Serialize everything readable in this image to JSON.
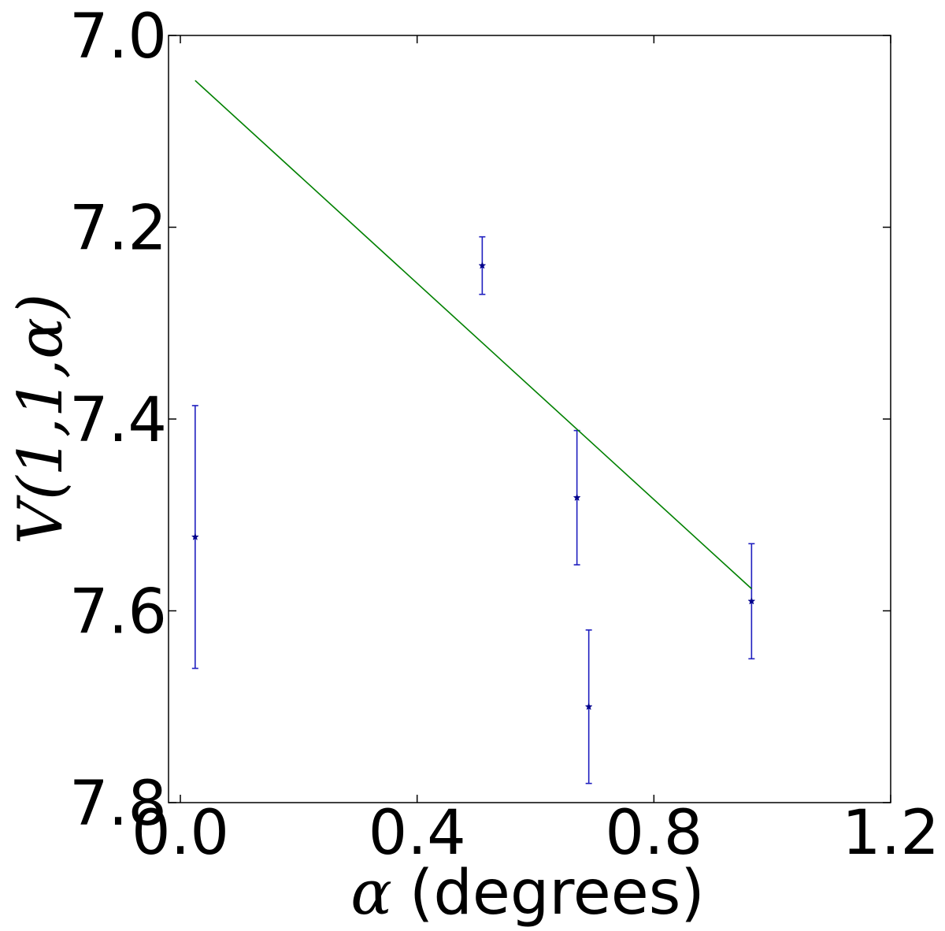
{
  "chart_data": {
    "type": "scatter",
    "title": "",
    "xlabel": {
      "symbol": "α",
      "text": "(degrees)"
    },
    "ylabel": {
      "text": "V(1,1,α)"
    },
    "xlim": [
      -0.02,
      1.2
    ],
    "ylim": [
      7.8,
      7.0
    ],
    "y_inverted": true,
    "xticks": [
      0.0,
      0.4,
      0.8,
      1.2
    ],
    "xtick_labels": [
      "0.0",
      "0.4",
      "0.8",
      "1.2"
    ],
    "yticks": [
      7.0,
      7.2,
      7.4,
      7.6,
      7.8
    ],
    "ytick_labels": [
      "7.0",
      "7.2",
      "7.4",
      "7.6",
      "7.8"
    ],
    "grid": false,
    "legend": "none",
    "series": [
      {
        "kind": "errorbar",
        "marker": "star",
        "color": "#00008b",
        "errcolor": "#1f1fbf",
        "points": [
          {
            "x": 0.025,
            "y": 7.523,
            "yerr": 0.137
          },
          {
            "x": 0.51,
            "y": 7.24,
            "yerr": 0.03
          },
          {
            "x": 0.67,
            "y": 7.482,
            "yerr": 0.07
          },
          {
            "x": 0.69,
            "y": 7.7,
            "yerr": 0.08
          },
          {
            "x": 0.965,
            "y": 7.59,
            "yerr": 0.06
          }
        ]
      },
      {
        "kind": "line",
        "color": "#008000",
        "x": [
          0.025,
          0.965
        ],
        "y": [
          7.047,
          7.577
        ]
      }
    ]
  }
}
